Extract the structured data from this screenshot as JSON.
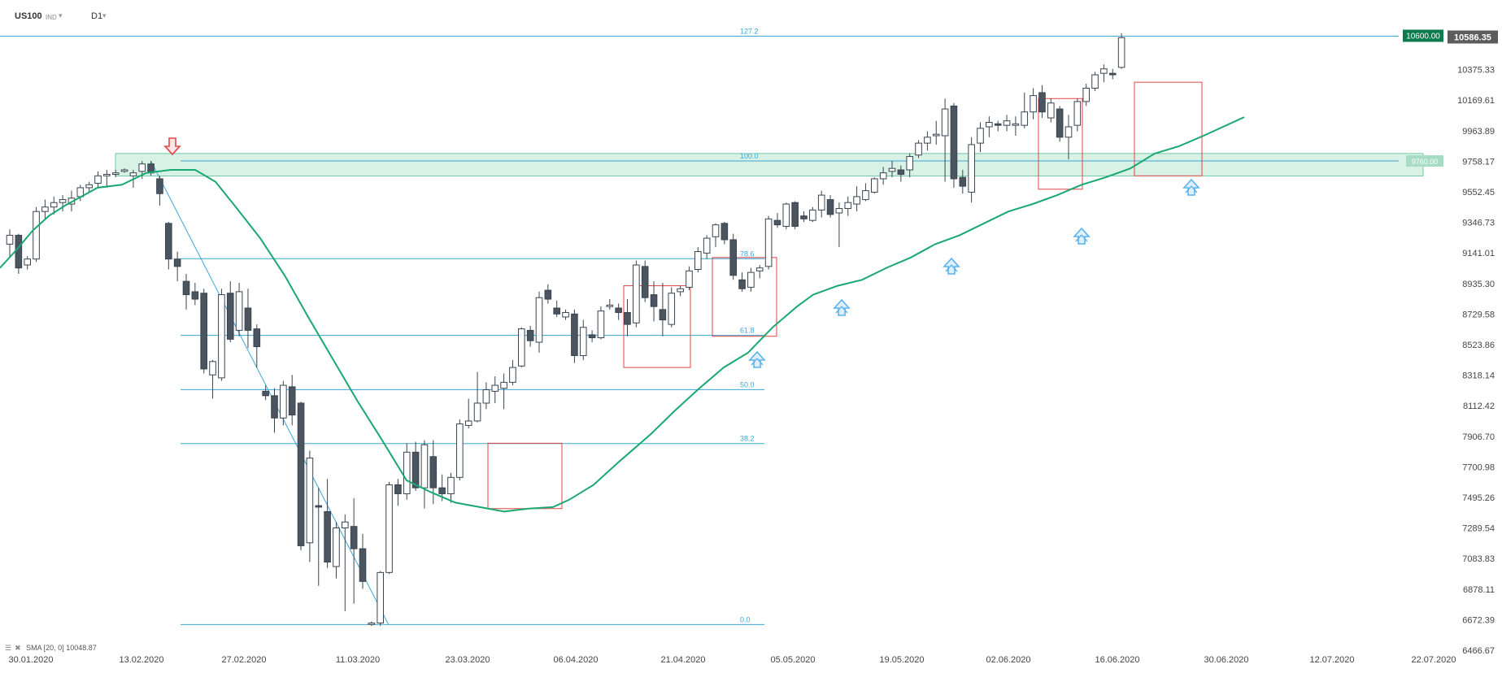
{
  "header": {
    "symbol": "US100",
    "type": "IND",
    "interval": "D1"
  },
  "sma_legend": {
    "label": "SMA",
    "params": "[20, 0]",
    "value": "10048.87"
  },
  "colors": {
    "bull": "#ffffff",
    "bear": "#4a5560",
    "sma": "#19a870",
    "fib": "#3aa7d6",
    "box": "#e04545",
    "arrow_up": "#59b3ec",
    "arrow_down": "#e04a4a",
    "zone": "#b9e8d2",
    "price_badge": "#0c7a4d"
  },
  "chart_data": {
    "type": "candlestick",
    "y_ticks": [
      "10586.35",
      "10375.33",
      "10169.61",
      "9963.89",
      "9758.17",
      "9552.45",
      "9346.73",
      "9141.01",
      "8935.30",
      "8729.58",
      "8523.86",
      "8318.14",
      "8112.42",
      "7906.70",
      "7700.98",
      "7495.26",
      "7289.54",
      "7083.83",
      "6878.11",
      "6672.39",
      "6466.67"
    ],
    "x_labels": [
      "30.01.2020",
      "13.02.2020",
      "27.02.2020",
      "11.03.2020",
      "23.03.2020",
      "06.04.2020",
      "21.04.2020",
      "05.05.2020",
      "19.05.2020",
      "02.06.2020",
      "16.06.2020",
      "30.06.2020",
      "12.07.2020",
      "22.07.2020"
    ],
    "last_price": "10586.35",
    "resistance_label": "10600.00",
    "support_label": "9760.00",
    "fib_levels": [
      {
        "label": "127.2",
        "price": 10600
      },
      {
        "label": "100.0",
        "price": 9760
      },
      {
        "label": "78.6",
        "price": 9102
      },
      {
        "label": "61.8",
        "price": 8586
      },
      {
        "label": "50.0",
        "price": 8221
      },
      {
        "label": "38.2",
        "price": 7858
      },
      {
        "label": "0.0",
        "price": 6640
      }
    ],
    "sma": {
      "name": "SMA [20, 0]",
      "value": 10048.87
    },
    "candles": [
      {
        "o": 9200,
        "h": 9300,
        "l": 9120,
        "c": 9260
      },
      {
        "o": 9260,
        "h": 9270,
        "l": 9000,
        "c": 9040
      },
      {
        "o": 9060,
        "h": 9120,
        "l": 9030,
        "c": 9100
      },
      {
        "o": 9100,
        "h": 9450,
        "l": 9080,
        "c": 9420
      },
      {
        "o": 9420,
        "h": 9500,
        "l": 9370,
        "c": 9450
      },
      {
        "o": 9450,
        "h": 9520,
        "l": 9400,
        "c": 9480
      },
      {
        "o": 9480,
        "h": 9530,
        "l": 9420,
        "c": 9500
      },
      {
        "o": 9470,
        "h": 9560,
        "l": 9420,
        "c": 9510
      },
      {
        "o": 9520,
        "h": 9600,
        "l": 9490,
        "c": 9580
      },
      {
        "o": 9580,
        "h": 9620,
        "l": 9550,
        "c": 9600
      },
      {
        "o": 9610,
        "h": 9690,
        "l": 9580,
        "c": 9660
      },
      {
        "o": 9660,
        "h": 9700,
        "l": 9580,
        "c": 9670
      },
      {
        "o": 9670,
        "h": 9700,
        "l": 9650,
        "c": 9680
      },
      {
        "o": 9690,
        "h": 9710,
        "l": 9680,
        "c": 9700
      },
      {
        "o": 9660,
        "h": 9700,
        "l": 9580,
        "c": 9680
      },
      {
        "o": 9690,
        "h": 9760,
        "l": 9640,
        "c": 9740
      },
      {
        "o": 9740,
        "h": 9760,
        "l": 9660,
        "c": 9680
      },
      {
        "o": 9640,
        "h": 9660,
        "l": 9460,
        "c": 9540
      },
      {
        "o": 9340,
        "h": 9350,
        "l": 9030,
        "c": 9100
      },
      {
        "o": 9100,
        "h": 9150,
        "l": 8950,
        "c": 9050
      },
      {
        "o": 8950,
        "h": 9000,
        "l": 8760,
        "c": 8860
      },
      {
        "o": 8880,
        "h": 8940,
        "l": 8790,
        "c": 8830
      },
      {
        "o": 8870,
        "h": 8900,
        "l": 8330,
        "c": 8360
      },
      {
        "o": 8320,
        "h": 8420,
        "l": 8160,
        "c": 8410
      },
      {
        "o": 8300,
        "h": 8900,
        "l": 8280,
        "c": 8860
      },
      {
        "o": 8870,
        "h": 8950,
        "l": 8540,
        "c": 8560
      },
      {
        "o": 8620,
        "h": 8940,
        "l": 8580,
        "c": 8880
      },
      {
        "o": 8770,
        "h": 8900,
        "l": 8500,
        "c": 8620
      },
      {
        "o": 8630,
        "h": 8660,
        "l": 8370,
        "c": 8510
      },
      {
        "o": 8210,
        "h": 8250,
        "l": 8150,
        "c": 8180
      },
      {
        "o": 8180,
        "h": 8230,
        "l": 7930,
        "c": 8030
      },
      {
        "o": 8030,
        "h": 8280,
        "l": 7980,
        "c": 8250
      },
      {
        "o": 8240,
        "h": 8320,
        "l": 7980,
        "c": 8050
      },
      {
        "o": 8130,
        "h": 8140,
        "l": 7140,
        "c": 7170
      },
      {
        "o": 7190,
        "h": 7810,
        "l": 7060,
        "c": 7760
      },
      {
        "o": 7440,
        "h": 7560,
        "l": 6900,
        "c": 7430
      },
      {
        "o": 7400,
        "h": 7620,
        "l": 7020,
        "c": 7060
      },
      {
        "o": 7030,
        "h": 7330,
        "l": 6950,
        "c": 7290
      },
      {
        "o": 7290,
        "h": 7380,
        "l": 6730,
        "c": 7330
      },
      {
        "o": 7300,
        "h": 7490,
        "l": 6780,
        "c": 7150
      },
      {
        "o": 7150,
        "h": 7250,
        "l": 6880,
        "c": 6930
      },
      {
        "o": 6640,
        "h": 6660,
        "l": 6630,
        "c": 6650
      },
      {
        "o": 6650,
        "h": 7000,
        "l": 6630,
        "c": 6990
      },
      {
        "o": 6990,
        "h": 7600,
        "l": 6980,
        "c": 7580
      },
      {
        "o": 7580,
        "h": 7620,
        "l": 7440,
        "c": 7520
      },
      {
        "o": 7520,
        "h": 7860,
        "l": 7480,
        "c": 7800
      },
      {
        "o": 7800,
        "h": 7870,
        "l": 7540,
        "c": 7560
      },
      {
        "o": 7560,
        "h": 7880,
        "l": 7420,
        "c": 7850
      },
      {
        "o": 7770,
        "h": 7880,
        "l": 7450,
        "c": 7560
      },
      {
        "o": 7560,
        "h": 7650,
        "l": 7470,
        "c": 7520
      },
      {
        "o": 7520,
        "h": 7660,
        "l": 7460,
        "c": 7630
      },
      {
        "o": 7630,
        "h": 8020,
        "l": 7610,
        "c": 7990
      },
      {
        "o": 7980,
        "h": 8160,
        "l": 7960,
        "c": 8010
      },
      {
        "o": 8010,
        "h": 8340,
        "l": 8000,
        "c": 8130
      },
      {
        "o": 8130,
        "h": 8270,
        "l": 8090,
        "c": 8220
      },
      {
        "o": 8210,
        "h": 8310,
        "l": 8130,
        "c": 8250
      },
      {
        "o": 8230,
        "h": 8330,
        "l": 8090,
        "c": 8270
      },
      {
        "o": 8270,
        "h": 8420,
        "l": 8250,
        "c": 8370
      },
      {
        "o": 8380,
        "h": 8640,
        "l": 8370,
        "c": 8630
      },
      {
        "o": 8620,
        "h": 8650,
        "l": 8510,
        "c": 8550
      },
      {
        "o": 8540,
        "h": 8880,
        "l": 8470,
        "c": 8840
      },
      {
        "o": 8890,
        "h": 8930,
        "l": 8800,
        "c": 8830
      },
      {
        "o": 8770,
        "h": 8820,
        "l": 8710,
        "c": 8730
      },
      {
        "o": 8710,
        "h": 8760,
        "l": 8690,
        "c": 8740
      },
      {
        "o": 8730,
        "h": 8760,
        "l": 8400,
        "c": 8450
      },
      {
        "o": 8450,
        "h": 8690,
        "l": 8420,
        "c": 8640
      },
      {
        "o": 8590,
        "h": 8620,
        "l": 8540,
        "c": 8570
      },
      {
        "o": 8570,
        "h": 8780,
        "l": 8560,
        "c": 8750
      },
      {
        "o": 8780,
        "h": 8830,
        "l": 8760,
        "c": 8790
      },
      {
        "o": 8770,
        "h": 8800,
        "l": 8690,
        "c": 8740
      },
      {
        "o": 8740,
        "h": 8830,
        "l": 8580,
        "c": 8660
      },
      {
        "o": 8670,
        "h": 9090,
        "l": 8640,
        "c": 9060
      },
      {
        "o": 9050,
        "h": 9090,
        "l": 8810,
        "c": 8840
      },
      {
        "o": 8860,
        "h": 8950,
        "l": 8680,
        "c": 8780
      },
      {
        "o": 8760,
        "h": 8940,
        "l": 8580,
        "c": 8690
      },
      {
        "o": 8660,
        "h": 8910,
        "l": 8640,
        "c": 8870
      },
      {
        "o": 8880,
        "h": 8920,
        "l": 8850,
        "c": 8900
      },
      {
        "o": 8910,
        "h": 9050,
        "l": 8890,
        "c": 9020
      },
      {
        "o": 9030,
        "h": 9180,
        "l": 9010,
        "c": 9150
      },
      {
        "o": 9140,
        "h": 9260,
        "l": 9100,
        "c": 9240
      },
      {
        "o": 9250,
        "h": 9340,
        "l": 9180,
        "c": 9330
      },
      {
        "o": 9340,
        "h": 9350,
        "l": 9200,
        "c": 9230
      },
      {
        "o": 9230,
        "h": 9270,
        "l": 8960,
        "c": 8990
      },
      {
        "o": 8960,
        "h": 9010,
        "l": 8880,
        "c": 8900
      },
      {
        "o": 8910,
        "h": 9040,
        "l": 8880,
        "c": 9010
      },
      {
        "o": 9020,
        "h": 9060,
        "l": 8970,
        "c": 9040
      },
      {
        "o": 9050,
        "h": 9390,
        "l": 9030,
        "c": 9370
      },
      {
        "o": 9360,
        "h": 9410,
        "l": 9310,
        "c": 9330
      },
      {
        "o": 9320,
        "h": 9480,
        "l": 9300,
        "c": 9470
      },
      {
        "o": 9480,
        "h": 9490,
        "l": 9300,
        "c": 9320
      },
      {
        "o": 9390,
        "h": 9420,
        "l": 9350,
        "c": 9370
      },
      {
        "o": 9360,
        "h": 9450,
        "l": 9350,
        "c": 9430
      },
      {
        "o": 9430,
        "h": 9560,
        "l": 9380,
        "c": 9530
      },
      {
        "o": 9500,
        "h": 9530,
        "l": 9380,
        "c": 9400
      },
      {
        "o": 9410,
        "h": 9480,
        "l": 9180,
        "c": 9440
      },
      {
        "o": 9440,
        "h": 9520,
        "l": 9390,
        "c": 9480
      },
      {
        "o": 9470,
        "h": 9590,
        "l": 9420,
        "c": 9520
      },
      {
        "o": 9500,
        "h": 9610,
        "l": 9490,
        "c": 9560
      },
      {
        "o": 9550,
        "h": 9650,
        "l": 9540,
        "c": 9640
      },
      {
        "o": 9640,
        "h": 9720,
        "l": 9600,
        "c": 9680
      },
      {
        "o": 9690,
        "h": 9760,
        "l": 9650,
        "c": 9710
      },
      {
        "o": 9700,
        "h": 9730,
        "l": 9620,
        "c": 9670
      },
      {
        "o": 9700,
        "h": 9810,
        "l": 9650,
        "c": 9790
      },
      {
        "o": 9800,
        "h": 9900,
        "l": 9780,
        "c": 9880
      },
      {
        "o": 9880,
        "h": 9960,
        "l": 9830,
        "c": 9920
      },
      {
        "o": 9930,
        "h": 10030,
        "l": 9870,
        "c": 9940
      },
      {
        "o": 9930,
        "h": 10180,
        "l": 9620,
        "c": 10110
      },
      {
        "o": 10130,
        "h": 10150,
        "l": 9580,
        "c": 9640
      },
      {
        "o": 9650,
        "h": 9700,
        "l": 9540,
        "c": 9590
      },
      {
        "o": 9550,
        "h": 9920,
        "l": 9480,
        "c": 9870
      },
      {
        "o": 9880,
        "h": 10020,
        "l": 9820,
        "c": 9980
      },
      {
        "o": 9990,
        "h": 10060,
        "l": 9920,
        "c": 10020
      },
      {
        "o": 10010,
        "h": 10030,
        "l": 9960,
        "c": 10000
      },
      {
        "o": 10000,
        "h": 10070,
        "l": 9960,
        "c": 10030
      },
      {
        "o": 10000,
        "h": 10060,
        "l": 9930,
        "c": 10010
      },
      {
        "o": 10000,
        "h": 10220,
        "l": 9980,
        "c": 10090
      },
      {
        "o": 10090,
        "h": 10250,
        "l": 10040,
        "c": 10200
      },
      {
        "o": 10220,
        "h": 10270,
        "l": 10050,
        "c": 10090
      },
      {
        "o": 10050,
        "h": 10180,
        "l": 10020,
        "c": 10150
      },
      {
        "o": 10110,
        "h": 10130,
        "l": 9890,
        "c": 9920
      },
      {
        "o": 9920,
        "h": 10070,
        "l": 9770,
        "c": 9990
      },
      {
        "o": 10000,
        "h": 10180,
        "l": 9960,
        "c": 10160
      },
      {
        "o": 10160,
        "h": 10280,
        "l": 10130,
        "c": 10250
      },
      {
        "o": 10250,
        "h": 10360,
        "l": 10230,
        "c": 10340
      },
      {
        "o": 10350,
        "h": 10410,
        "l": 10290,
        "c": 10380
      },
      {
        "o": 10350,
        "h": 10380,
        "l": 10310,
        "c": 10340
      },
      {
        "o": 10390,
        "h": 10620,
        "l": 10380,
        "c": 10590
      }
    ]
  }
}
